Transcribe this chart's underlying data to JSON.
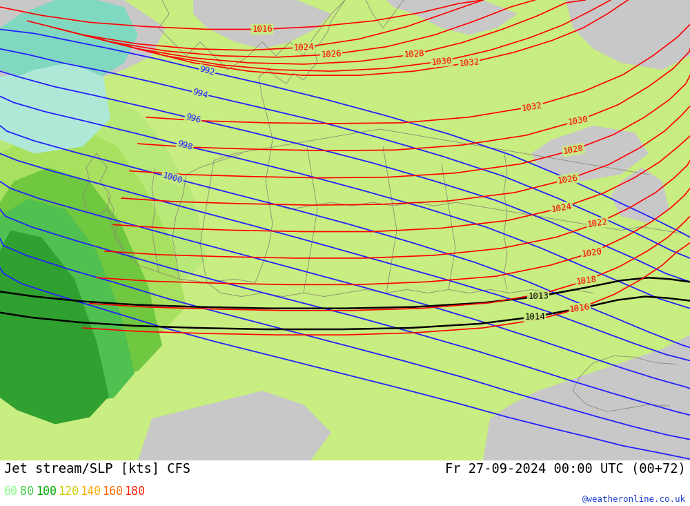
{
  "title_left": "Jet stream/SLP [kts] CFS",
  "title_right": "Fr 27-09-2024 00:00 UTC (00+72)",
  "watermark": "@weatheronline.co.uk",
  "legend_values": [
    "60",
    "80",
    "100",
    "120",
    "140",
    "160",
    "180"
  ],
  "legend_colors": [
    "#80ff80",
    "#40cc40",
    "#00aa00",
    "#cccc00",
    "#ffaa00",
    "#ff6600",
    "#ff2200"
  ],
  "figsize": [
    10.0,
    7.33
  ],
  "dpi": 100,
  "land_yellow_green": "#c8ed80",
  "gray_ocean": "#c8c8c8",
  "light_green": "#a8e060",
  "mid_green": "#70c840",
  "dark_green": "#30a030",
  "teal_color": "#80d8c0",
  "light_teal": "#b0e8d8",
  "blue_col": "#2222ff",
  "black_col": "#000000",
  "red_col": "#ff0000"
}
